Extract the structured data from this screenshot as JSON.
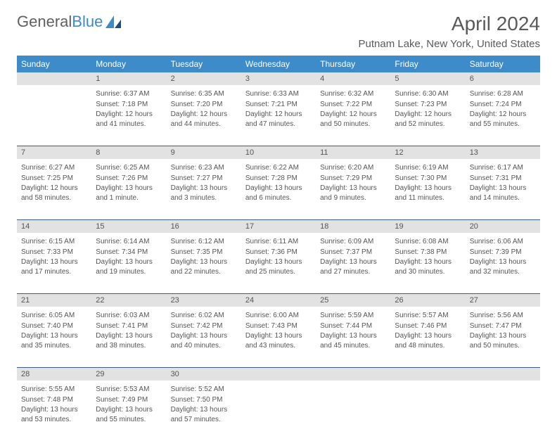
{
  "logo": {
    "text1": "General",
    "text2": "Blue"
  },
  "title": "April 2024",
  "location": "Putnam Lake, New York, United States",
  "colors": {
    "header_bg": "#3d8cc9",
    "header_text": "#ffffff",
    "daynum_bg": "#e2e2e2",
    "divider": "#3d5a80",
    "body_text": "#555555",
    "title_text": "#5a5a5a",
    "logo_gray": "#606060",
    "logo_blue": "#3d8cc9"
  },
  "weekdays": [
    "Sunday",
    "Monday",
    "Tuesday",
    "Wednesday",
    "Thursday",
    "Friday",
    "Saturday"
  ],
  "weeks": [
    [
      null,
      {
        "n": "1",
        "sr": "6:37 AM",
        "ss": "7:18 PM",
        "dl": "12 hours and 41 minutes."
      },
      {
        "n": "2",
        "sr": "6:35 AM",
        "ss": "7:20 PM",
        "dl": "12 hours and 44 minutes."
      },
      {
        "n": "3",
        "sr": "6:33 AM",
        "ss": "7:21 PM",
        "dl": "12 hours and 47 minutes."
      },
      {
        "n": "4",
        "sr": "6:32 AM",
        "ss": "7:22 PM",
        "dl": "12 hours and 50 minutes."
      },
      {
        "n": "5",
        "sr": "6:30 AM",
        "ss": "7:23 PM",
        "dl": "12 hours and 52 minutes."
      },
      {
        "n": "6",
        "sr": "6:28 AM",
        "ss": "7:24 PM",
        "dl": "12 hours and 55 minutes."
      }
    ],
    [
      {
        "n": "7",
        "sr": "6:27 AM",
        "ss": "7:25 PM",
        "dl": "12 hours and 58 minutes."
      },
      {
        "n": "8",
        "sr": "6:25 AM",
        "ss": "7:26 PM",
        "dl": "13 hours and 1 minute."
      },
      {
        "n": "9",
        "sr": "6:23 AM",
        "ss": "7:27 PM",
        "dl": "13 hours and 3 minutes."
      },
      {
        "n": "10",
        "sr": "6:22 AM",
        "ss": "7:28 PM",
        "dl": "13 hours and 6 minutes."
      },
      {
        "n": "11",
        "sr": "6:20 AM",
        "ss": "7:29 PM",
        "dl": "13 hours and 9 minutes."
      },
      {
        "n": "12",
        "sr": "6:19 AM",
        "ss": "7:30 PM",
        "dl": "13 hours and 11 minutes."
      },
      {
        "n": "13",
        "sr": "6:17 AM",
        "ss": "7:31 PM",
        "dl": "13 hours and 14 minutes."
      }
    ],
    [
      {
        "n": "14",
        "sr": "6:15 AM",
        "ss": "7:33 PM",
        "dl": "13 hours and 17 minutes."
      },
      {
        "n": "15",
        "sr": "6:14 AM",
        "ss": "7:34 PM",
        "dl": "13 hours and 19 minutes."
      },
      {
        "n": "16",
        "sr": "6:12 AM",
        "ss": "7:35 PM",
        "dl": "13 hours and 22 minutes."
      },
      {
        "n": "17",
        "sr": "6:11 AM",
        "ss": "7:36 PM",
        "dl": "13 hours and 25 minutes."
      },
      {
        "n": "18",
        "sr": "6:09 AM",
        "ss": "7:37 PM",
        "dl": "13 hours and 27 minutes."
      },
      {
        "n": "19",
        "sr": "6:08 AM",
        "ss": "7:38 PM",
        "dl": "13 hours and 30 minutes."
      },
      {
        "n": "20",
        "sr": "6:06 AM",
        "ss": "7:39 PM",
        "dl": "13 hours and 32 minutes."
      }
    ],
    [
      {
        "n": "21",
        "sr": "6:05 AM",
        "ss": "7:40 PM",
        "dl": "13 hours and 35 minutes."
      },
      {
        "n": "22",
        "sr": "6:03 AM",
        "ss": "7:41 PM",
        "dl": "13 hours and 38 minutes."
      },
      {
        "n": "23",
        "sr": "6:02 AM",
        "ss": "7:42 PM",
        "dl": "13 hours and 40 minutes."
      },
      {
        "n": "24",
        "sr": "6:00 AM",
        "ss": "7:43 PM",
        "dl": "13 hours and 43 minutes."
      },
      {
        "n": "25",
        "sr": "5:59 AM",
        "ss": "7:44 PM",
        "dl": "13 hours and 45 minutes."
      },
      {
        "n": "26",
        "sr": "5:57 AM",
        "ss": "7:46 PM",
        "dl": "13 hours and 48 minutes."
      },
      {
        "n": "27",
        "sr": "5:56 AM",
        "ss": "7:47 PM",
        "dl": "13 hours and 50 minutes."
      }
    ],
    [
      {
        "n": "28",
        "sr": "5:55 AM",
        "ss": "7:48 PM",
        "dl": "13 hours and 53 minutes."
      },
      {
        "n": "29",
        "sr": "5:53 AM",
        "ss": "7:49 PM",
        "dl": "13 hours and 55 minutes."
      },
      {
        "n": "30",
        "sr": "5:52 AM",
        "ss": "7:50 PM",
        "dl": "13 hours and 57 minutes."
      },
      null,
      null,
      null,
      null
    ]
  ],
  "labels": {
    "sunrise": "Sunrise: ",
    "sunset": "Sunset: ",
    "daylight": "Daylight: "
  }
}
